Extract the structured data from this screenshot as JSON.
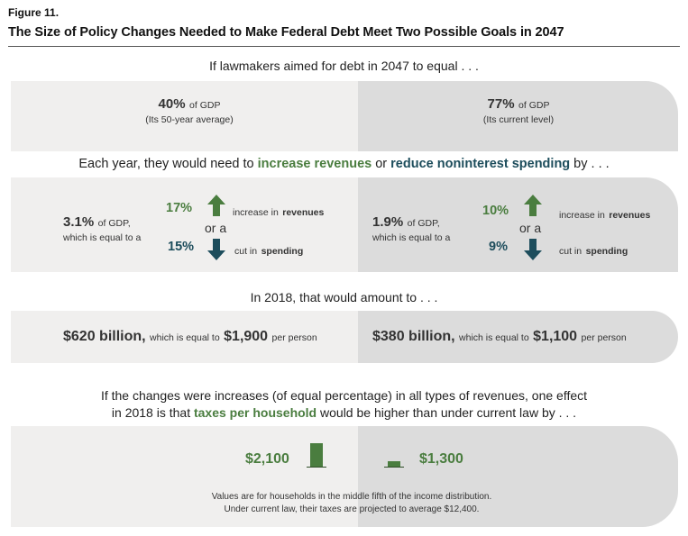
{
  "figure_label": "Figure 11.",
  "title": "The Size of Policy Changes Needed to Make Federal Debt Meet Two Possible Goals in 2047",
  "colors": {
    "green": "#4a7d3f",
    "navy": "#1d4d5c",
    "panel_left": "#f0efee",
    "panel_right": "#dcdcdc"
  },
  "goal_header": "If lawmakers aimed for debt in 2047 to equal . . .",
  "goals": [
    {
      "pct": "40%",
      "unit": "of GDP",
      "note": "(Its 50-year average)"
    },
    {
      "pct": "77%",
      "unit": "of GDP",
      "note": "(Its current level)"
    }
  ],
  "change_header": {
    "pre": "Each year, they would need to ",
    "revenues": "increase revenues",
    "mid": " or ",
    "spending": "reduce noninterest spending",
    "post": " by . . ."
  },
  "changes": [
    {
      "gdp_pct": "3.1%",
      "gdp_unit": "of GDP,",
      "equal_text": "which is equal to a",
      "rev_pct": "17%",
      "rev_pre": "increase in",
      "rev_word": "revenues",
      "or_text": "or a",
      "spend_pct": "15%",
      "spend_pre": "cut in",
      "spend_word": "spending"
    },
    {
      "gdp_pct": "1.9%",
      "gdp_unit": "of GDP,",
      "equal_text": "which is equal to a",
      "rev_pct": "10%",
      "rev_pre": "increase in",
      "rev_word": "revenues",
      "or_text": "or a",
      "spend_pct": "9%",
      "spend_pre": "cut in",
      "spend_word": "spending"
    }
  ],
  "amount_header": "In 2018, that would amount to . . .",
  "amounts": [
    {
      "total": "$620 billion,",
      "equal_text": "which is equal to",
      "per": "$1,900",
      "per_text": "per person"
    },
    {
      "total": "$380 billion,",
      "equal_text": "which is equal to",
      "per": "$1,100",
      "per_text": "per person"
    }
  ],
  "tax_header": {
    "line1": "If the changes were increases (of equal percentage) in all types of revenues, one effect",
    "line2_pre": "in 2018 is that ",
    "line2_emph": "taxes per household",
    "line2_post": " would be higher than under current law by . . ."
  },
  "taxes": [
    {
      "value": "$2,100",
      "amount": 2100
    },
    {
      "value": "$1,300",
      "amount": 1300
    }
  ],
  "footnotes": [
    "Values are for households in the middle fifth of the income distribution.",
    "Under current law, their taxes are projected to average $12,400."
  ]
}
